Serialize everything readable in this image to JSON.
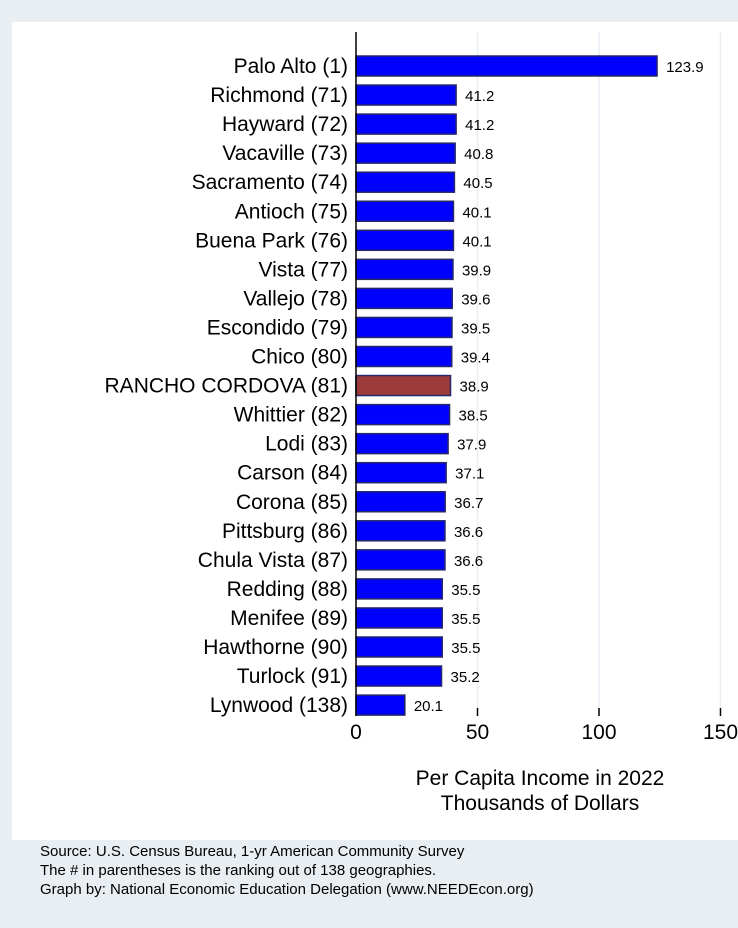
{
  "chart_data": {
    "type": "bar",
    "orientation": "horizontal",
    "categories": [
      "Palo Alto  (1)",
      "Richmond (71)",
      "Hayward (72)",
      "Vacaville (73)",
      "Sacramento (74)",
      "Antioch (75)",
      "Buena Park (76)",
      "Vista (77)",
      "Vallejo (78)",
      "Escondido (79)",
      "Chico (80)",
      "RANCHO CORDOVA (81)",
      "Whittier (82)",
      "Lodi (83)",
      "Carson (84)",
      "Corona (85)",
      "Pittsburg (86)",
      "Chula Vista (87)",
      "Redding (88)",
      "Menifee (89)",
      "Hawthorne (90)",
      "Turlock (91)",
      "Lynwood (138)"
    ],
    "values": [
      123.9,
      41.2,
      41.2,
      40.8,
      40.5,
      40.1,
      40.1,
      39.9,
      39.6,
      39.5,
      39.4,
      38.9,
      38.5,
      37.9,
      37.1,
      36.7,
      36.6,
      36.6,
      35.5,
      35.5,
      35.5,
      35.2,
      20.1
    ],
    "value_labels": [
      "123.9",
      "41.2",
      "41.2",
      "40.8",
      "40.5",
      "40.1",
      "40.1",
      "39.9",
      "39.6",
      "39.5",
      "39.4",
      "38.9",
      "38.5",
      "37.9",
      "37.1",
      "36.7",
      "36.6",
      "36.6",
      "35.5",
      "35.5",
      "35.5",
      "35.2",
      "20.1"
    ],
    "highlight": "RANCHO CORDOVA (81)",
    "xlabel": [
      "Per Capita Income in 2022",
      "Thousands of Dollars"
    ],
    "xlim": [
      0,
      150
    ],
    "xticks": [
      0,
      50,
      100,
      150
    ],
    "xtick_labels": [
      "0",
      "50",
      "100",
      "150"
    ],
    "grid": true,
    "colors": {
      "bar": "#0000ff",
      "highlight": "#9b3a3a",
      "grid": "#e8eef3"
    }
  },
  "notes": [
    "Source: U.S. Census Bureau, 1-yr American Community Survey",
    "The # in parentheses is the ranking out of 138 geographies.",
    "Graph by: National Economic Education Delegation (www.NEEDEcon.org)"
  ]
}
